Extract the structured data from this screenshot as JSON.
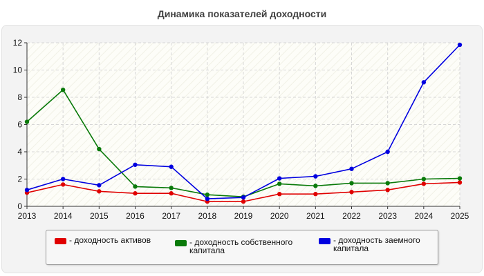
{
  "title": "Динамика показателей доходности",
  "chart_data": {
    "type": "line",
    "x": [
      "2013",
      "2014",
      "2015",
      "2016",
      "2017",
      "2018",
      "2019",
      "2020",
      "2021",
      "2022",
      "2023",
      "2024",
      "2025"
    ],
    "ylim": [
      0,
      12
    ],
    "yticks": [
      0,
      2,
      4,
      6,
      8,
      10,
      12
    ],
    "grid": true,
    "legend_position": "bottom",
    "series": [
      {
        "name": "- доходность активов",
        "color": "#e00000",
        "values": [
          1.0,
          1.6,
          1.1,
          0.95,
          0.95,
          0.35,
          0.35,
          0.9,
          0.9,
          1.05,
          1.2,
          1.65,
          1.75
        ]
      },
      {
        "name": "- доходность собственного капитала",
        "color": "#0a7a0a",
        "values": [
          6.2,
          8.55,
          4.2,
          1.45,
          1.35,
          0.85,
          0.7,
          1.65,
          1.5,
          1.7,
          1.7,
          2.0,
          2.05
        ]
      },
      {
        "name": "- доходность заемного капитала",
        "color": "#0000e0",
        "values": [
          1.2,
          2.0,
          1.55,
          3.05,
          2.9,
          0.55,
          0.65,
          2.05,
          2.2,
          2.75,
          4.0,
          9.1,
          11.85
        ]
      }
    ]
  }
}
